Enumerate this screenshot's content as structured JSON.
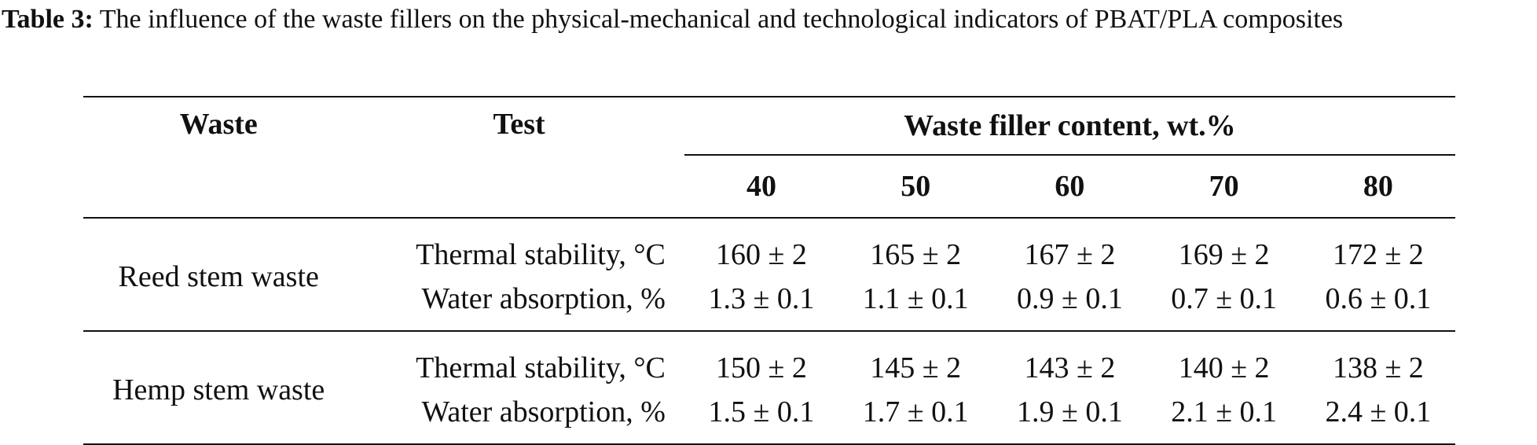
{
  "caption": {
    "label": "Table 3:",
    "text": "The influence of the waste fillers on the physical-mechanical and technological indicators of PBAT/PLA composites"
  },
  "table": {
    "header": {
      "waste": "Waste",
      "test": "Test",
      "group": "Waste filler content, wt.%",
      "contents": [
        "40",
        "50",
        "60",
        "70",
        "80"
      ]
    },
    "groups": [
      {
        "waste": "Reed stem waste",
        "rows": [
          {
            "test": "Thermal stability, °C",
            "values": [
              "160 ± 2",
              "165 ± 2",
              "167 ± 2",
              "169 ± 2",
              "172 ± 2"
            ]
          },
          {
            "test": "Water absorption, %",
            "values": [
              "1.3 ± 0.1",
              "1.1 ± 0.1",
              "0.9 ± 0.1",
              "0.7 ± 0.1",
              "0.6 ± 0.1"
            ]
          }
        ]
      },
      {
        "waste": "Hemp stem waste",
        "rows": [
          {
            "test": "Thermal stability, °C",
            "values": [
              "150 ± 2",
              "145 ± 2",
              "143 ± 2",
              "140 ± 2",
              "138 ± 2"
            ]
          },
          {
            "test": "Water absorption, %",
            "values": [
              "1.5 ± 0.1",
              "1.7 ± 0.1",
              "1.9 ± 0.1",
              "2.1 ± 0.1",
              "2.4 ± 0.1"
            ]
          }
        ]
      }
    ]
  }
}
